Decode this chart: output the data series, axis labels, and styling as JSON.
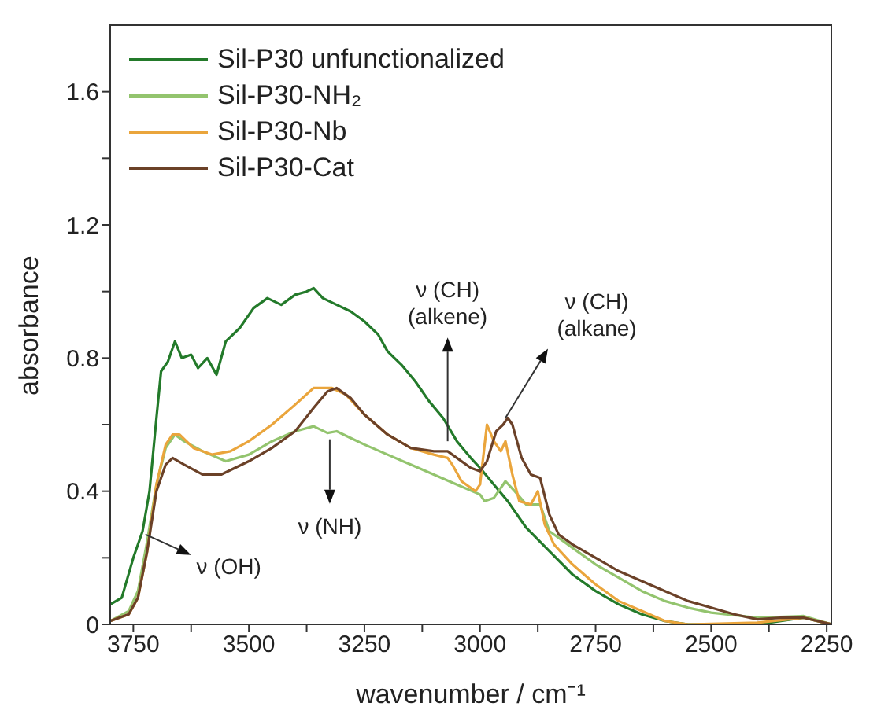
{
  "chart_data": {
    "type": "line",
    "xlabel": "wavenumber / cm⁻¹",
    "ylabel": "absorbance",
    "xlim": [
      3800,
      2240
    ],
    "ylim": [
      0,
      1.8
    ],
    "xticks": [
      3750,
      {
        "value": 3625,
        "label": null
      },
      3500,
      {
        "value": 3375,
        "label": null
      },
      3250,
      {
        "value": 3125,
        "label": null
      },
      3000,
      {
        "value": 2875,
        "label": null
      },
      2750,
      {
        "value": 2625,
        "label": null
      },
      2500,
      {
        "value": 2375,
        "label": null
      },
      2250
    ],
    "yticks": [
      0,
      {
        "value": 0.2,
        "label": null
      },
      0.4,
      {
        "value": 0.6,
        "label": null
      },
      0.8,
      {
        "value": 1.0,
        "label": null
      },
      1.2,
      {
        "value": 1.4,
        "label": null
      },
      1.6
    ],
    "grid": false,
    "legend": "top left",
    "marker": "none",
    "line_style": "solid",
    "series": [
      {
        "name": "Sil-P30 unfunctionalized",
        "color": "#237a2a",
        "x": [
          3800,
          3775,
          3750,
          3730,
          3715,
          3700,
          3690,
          3675,
          3660,
          3645,
          3625,
          3610,
          3590,
          3570,
          3550,
          3520,
          3490,
          3460,
          3430,
          3400,
          3375,
          3360,
          3340,
          3310,
          3280,
          3250,
          3220,
          3200,
          3170,
          3140,
          3110,
          3080,
          3050,
          3020,
          3000,
          2970,
          2940,
          2900,
          2850,
          2800,
          2750,
          2700,
          2650,
          2600,
          2550,
          2400,
          2300,
          2240
        ],
        "values": [
          0.06,
          0.08,
          0.2,
          0.28,
          0.4,
          0.62,
          0.76,
          0.79,
          0.85,
          0.8,
          0.81,
          0.77,
          0.8,
          0.75,
          0.85,
          0.89,
          0.95,
          0.98,
          0.96,
          0.99,
          1.0,
          1.01,
          0.98,
          0.96,
          0.94,
          0.91,
          0.87,
          0.82,
          0.78,
          0.73,
          0.67,
          0.62,
          0.55,
          0.5,
          0.47,
          0.42,
          0.37,
          0.29,
          0.22,
          0.15,
          0.1,
          0.06,
          0.03,
          0.01,
          0,
          0,
          0.02,
          0
        ]
      },
      {
        "name": "Sil-P30-NH₂",
        "color": "#93c46e",
        "x": [
          3800,
          3760,
          3740,
          3720,
          3700,
          3680,
          3660,
          3640,
          3600,
          3550,
          3500,
          3450,
          3400,
          3360,
          3330,
          3310,
          3280,
          3250,
          3200,
          3150,
          3100,
          3050,
          3000,
          2990,
          2970,
          2945,
          2925,
          2900,
          2870,
          2850,
          2800,
          2750,
          2700,
          2650,
          2600,
          2550,
          2500,
          2400,
          2300,
          2240
        ],
        "values": [
          0.01,
          0.04,
          0.1,
          0.25,
          0.42,
          0.53,
          0.57,
          0.55,
          0.52,
          0.49,
          0.51,
          0.55,
          0.58,
          0.595,
          0.575,
          0.58,
          0.56,
          0.54,
          0.51,
          0.48,
          0.45,
          0.42,
          0.39,
          0.37,
          0.38,
          0.43,
          0.4,
          0.36,
          0.36,
          0.28,
          0.23,
          0.18,
          0.14,
          0.1,
          0.07,
          0.05,
          0.035,
          0.02,
          0.025,
          0
        ]
      },
      {
        "name": "Sil-P30-Nb",
        "color": "#eaa53c",
        "x": [
          3800,
          3760,
          3740,
          3720,
          3700,
          3680,
          3665,
          3650,
          3620,
          3580,
          3540,
          3500,
          3450,
          3400,
          3360,
          3320,
          3290,
          3250,
          3200,
          3150,
          3100,
          3070,
          3060,
          3040,
          3010,
          3000,
          2985,
          2970,
          2955,
          2945,
          2930,
          2915,
          2890,
          2875,
          2860,
          2840,
          2800,
          2750,
          2700,
          2650,
          2600,
          2550,
          2400,
          2300,
          2240
        ],
        "values": [
          0.01,
          0.03,
          0.08,
          0.22,
          0.42,
          0.54,
          0.57,
          0.57,
          0.53,
          0.51,
          0.52,
          0.55,
          0.6,
          0.66,
          0.71,
          0.71,
          0.69,
          0.63,
          0.57,
          0.53,
          0.51,
          0.5,
          0.48,
          0.43,
          0.4,
          0.42,
          0.6,
          0.55,
          0.52,
          0.55,
          0.45,
          0.37,
          0.36,
          0.4,
          0.3,
          0.24,
          0.18,
          0.12,
          0.07,
          0.04,
          0.01,
          0,
          0.005,
          0.02,
          0
        ]
      },
      {
        "name": "Sil-P30-Cat",
        "color": "#6b4128",
        "x": [
          3800,
          3760,
          3740,
          3720,
          3700,
          3680,
          3665,
          3640,
          3600,
          3560,
          3500,
          3450,
          3400,
          3360,
          3330,
          3310,
          3280,
          3250,
          3200,
          3150,
          3100,
          3070,
          3050,
          3020,
          3000,
          2985,
          2965,
          2950,
          2940,
          2930,
          2910,
          2890,
          2870,
          2850,
          2830,
          2800,
          2750,
          2700,
          2650,
          2600,
          2550,
          2500,
          2450,
          2400,
          2350,
          2300,
          2240
        ],
        "values": [
          0.01,
          0.03,
          0.08,
          0.22,
          0.4,
          0.48,
          0.5,
          0.48,
          0.45,
          0.45,
          0.49,
          0.53,
          0.58,
          0.65,
          0.7,
          0.71,
          0.68,
          0.63,
          0.57,
          0.53,
          0.52,
          0.52,
          0.5,
          0.47,
          0.46,
          0.49,
          0.58,
          0.6,
          0.62,
          0.6,
          0.5,
          0.45,
          0.44,
          0.33,
          0.27,
          0.24,
          0.2,
          0.16,
          0.13,
          0.1,
          0.07,
          0.05,
          0.03,
          0.015,
          0.02,
          0.02,
          0
        ]
      }
    ],
    "annotations": [
      {
        "text": "ν (OH)",
        "x": 3724,
        "y": 0.27
      },
      {
        "text": "ν (NH)",
        "x": 3325,
        "y": 0.57
      },
      {
        "text": "ν (CH)\n(alkene)",
        "x": 3070,
        "y": 0.55
      },
      {
        "text": "ν (CH)\n(alkane)",
        "x": 2945,
        "y": 0.62
      }
    ]
  }
}
